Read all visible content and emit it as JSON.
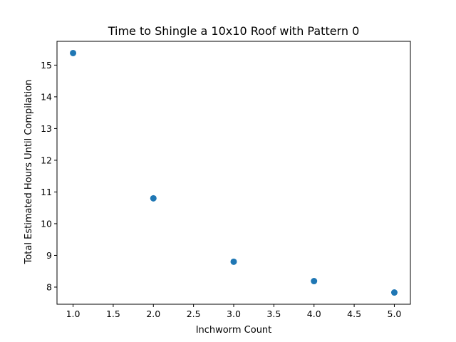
{
  "chart_data": {
    "type": "scatter",
    "title": "Time to Shingle a 10x10 Roof with Pattern 0",
    "xlabel": "Inchworm Count",
    "ylabel": "Total Estimated Hours Until Compilation",
    "x": [
      1.0,
      2.0,
      3.0,
      4.0,
      5.0
    ],
    "y": [
      15.38,
      10.8,
      8.8,
      8.19,
      7.83
    ],
    "xlim": [
      0.8,
      5.2
    ],
    "ylim": [
      7.46,
      15.75
    ],
    "xticks": [
      1.0,
      1.5,
      2.0,
      2.5,
      3.0,
      3.5,
      4.0,
      4.5,
      5.0
    ],
    "xtick_labels": [
      "1.0",
      "1.5",
      "2.0",
      "2.5",
      "3.0",
      "3.5",
      "4.0",
      "4.5",
      "5.0"
    ],
    "yticks": [
      8,
      9,
      10,
      11,
      12,
      13,
      14,
      15
    ],
    "ytick_labels": [
      "8",
      "9",
      "10",
      "11",
      "12",
      "13",
      "14",
      "15"
    ],
    "marker_color": "#1f77b4",
    "grid": false,
    "legend": "none"
  }
}
